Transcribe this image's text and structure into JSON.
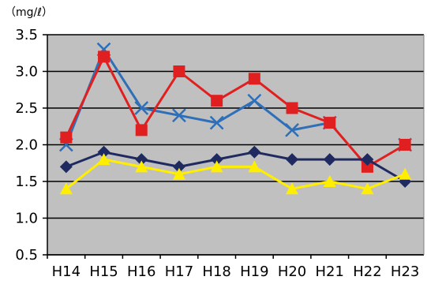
{
  "chart_data": {
    "type": "line",
    "unit_label": "（mg/ℓ）",
    "categories": [
      "H14",
      "H15",
      "H16",
      "H17",
      "H18",
      "H19",
      "H20",
      "H21",
      "H22",
      "H23"
    ],
    "y_ticks": [
      "0.5",
      "1.0",
      "1.5",
      "2.0",
      "2.5",
      "3.0",
      "3.5"
    ],
    "ylim": [
      0.5,
      3.5
    ],
    "grid": true,
    "plot_background": "#c0c0c0",
    "series": [
      {
        "marker": "cross",
        "color": "#2e6fb8",
        "values": [
          2.0,
          3.3,
          2.5,
          2.4,
          2.3,
          2.6,
          2.2,
          2.3,
          null,
          2.0
        ]
      },
      {
        "marker": "square",
        "color": "#e02020",
        "values": [
          2.1,
          3.2,
          2.2,
          3.0,
          2.6,
          2.9,
          2.5,
          2.3,
          1.7,
          2.0
        ]
      },
      {
        "marker": "diamond",
        "color": "#1f2a60",
        "values": [
          1.7,
          1.9,
          1.8,
          1.7,
          1.8,
          1.9,
          1.8,
          1.8,
          1.8,
          1.5
        ]
      },
      {
        "marker": "triangle",
        "color": "#ffee00",
        "values": [
          1.4,
          1.8,
          1.7,
          1.6,
          1.7,
          1.7,
          1.4,
          1.5,
          1.4,
          1.6
        ]
      }
    ]
  }
}
